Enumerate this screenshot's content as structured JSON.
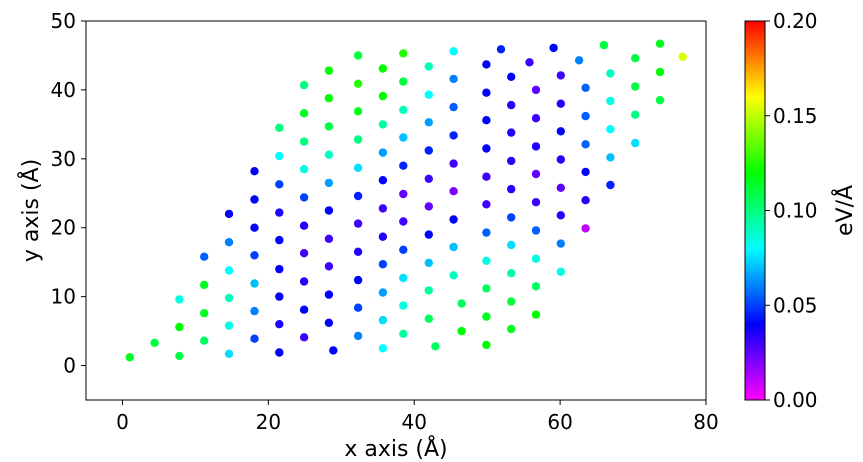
{
  "chart_data": {
    "type": "scatter",
    "xlabel": "x axis (Å)",
    "ylabel": "y axis (Å)",
    "xlim": [
      -5,
      80
    ],
    "ylim": [
      -5,
      50
    ],
    "xticks": [
      "0",
      "20",
      "40",
      "60",
      "80"
    ],
    "yticks": [
      "0",
      "10",
      "20",
      "30",
      "40",
      "50"
    ],
    "colorbar": {
      "label": "eV/Å",
      "range": [
        0.0,
        0.2
      ],
      "ticks": [
        "0.00",
        "0.05",
        "0.10",
        "0.15",
        "0.20"
      ],
      "colormap": "gist_rainbow_r"
    },
    "points": [
      [
        1,
        1.2,
        0.115
      ],
      [
        4.4,
        3.3,
        0.11
      ],
      [
        7.8,
        1.4,
        0.11
      ],
      [
        7.8,
        5.6,
        0.12
      ],
      [
        7.8,
        9.6,
        0.085
      ],
      [
        11.2,
        3.6,
        0.105
      ],
      [
        11.2,
        7.6,
        0.115
      ],
      [
        11.2,
        11.7,
        0.115
      ],
      [
        11.2,
        15.8,
        0.055
      ],
      [
        14.6,
        1.7,
        0.075
      ],
      [
        14.6,
        5.8,
        0.085
      ],
      [
        14.6,
        9.8,
        0.09
      ],
      [
        14.6,
        13.8,
        0.08
      ],
      [
        14.6,
        17.9,
        0.06
      ],
      [
        14.6,
        22,
        0.04
      ],
      [
        18.1,
        3.9,
        0.05
      ],
      [
        18.1,
        7.9,
        0.06
      ],
      [
        18.1,
        11.9,
        0.07
      ],
      [
        18.1,
        16,
        0.05
      ],
      [
        18.1,
        20,
        0.04
      ],
      [
        18.1,
        24.1,
        0.04
      ],
      [
        18.1,
        28.2,
        0.04
      ],
      [
        21.5,
        1.9,
        0.04
      ],
      [
        21.5,
        6,
        0.035
      ],
      [
        21.5,
        10,
        0.04
      ],
      [
        21.5,
        14,
        0.04
      ],
      [
        21.5,
        18.2,
        0.04
      ],
      [
        21.5,
        22.2,
        0.035
      ],
      [
        21.5,
        26.3,
        0.05
      ],
      [
        21.5,
        30.4,
        0.08
      ],
      [
        21.5,
        34.5,
        0.1
      ],
      [
        24.9,
        4.1,
        0.03
      ],
      [
        24.9,
        8.1,
        0.04
      ],
      [
        24.9,
        12.2,
        0.035
      ],
      [
        24.9,
        16.3,
        0.03
      ],
      [
        24.9,
        20.3,
        0.035
      ],
      [
        24.9,
        24.4,
        0.05
      ],
      [
        24.9,
        28.5,
        0.085
      ],
      [
        24.9,
        32.5,
        0.1
      ],
      [
        24.9,
        36.6,
        0.115
      ],
      [
        24.9,
        40.7,
        0.1
      ],
      [
        28.3,
        6.2,
        0.04
      ],
      [
        28.3,
        10.3,
        0.04
      ],
      [
        28.3,
        14.4,
        0.03
      ],
      [
        28.3,
        18.4,
        0.03
      ],
      [
        28.3,
        22.5,
        0.04
      ],
      [
        28.3,
        26.5,
        0.065
      ],
      [
        28.3,
        30.6,
        0.09
      ],
      [
        28.3,
        34.7,
        0.11
      ],
      [
        28.3,
        38.8,
        0.12
      ],
      [
        28.3,
        42.8,
        0.12
      ],
      [
        28.9,
        2.2,
        0.04
      ],
      [
        32.3,
        4.3,
        0.06
      ],
      [
        32.3,
        8.4,
        0.05
      ],
      [
        32.3,
        12.4,
        0.04
      ],
      [
        32.3,
        16.5,
        0.035
      ],
      [
        32.3,
        20.6,
        0.03
      ],
      [
        32.3,
        24.6,
        0.045
      ],
      [
        32.3,
        28.7,
        0.075
      ],
      [
        32.3,
        32.8,
        0.1
      ],
      [
        32.3,
        36.9,
        0.115
      ],
      [
        32.3,
        40.9,
        0.125
      ],
      [
        32.3,
        45,
        0.11
      ],
      [
        35.7,
        2.5,
        0.08
      ],
      [
        35.7,
        6.6,
        0.075
      ],
      [
        35.7,
        10.6,
        0.065
      ],
      [
        35.7,
        14.7,
        0.05
      ],
      [
        35.7,
        18.7,
        0.035
      ],
      [
        35.7,
        22.8,
        0.03
      ],
      [
        35.7,
        26.9,
        0.04
      ],
      [
        35.7,
        30.9,
        0.065
      ],
      [
        35.7,
        35,
        0.095
      ],
      [
        35.7,
        39.1,
        0.12
      ],
      [
        35.7,
        43.1,
        0.12
      ],
      [
        38.5,
        4.6,
        0.095
      ],
      [
        38.5,
        8.7,
        0.085
      ],
      [
        38.5,
        12.7,
        0.075
      ],
      [
        38.5,
        16.8,
        0.05
      ],
      [
        38.5,
        20.9,
        0.03
      ],
      [
        38.5,
        24.9,
        0.025
      ],
      [
        38.5,
        29,
        0.045
      ],
      [
        38.5,
        33.1,
        0.07
      ],
      [
        38.5,
        37.1,
        0.09
      ],
      [
        38.5,
        41.2,
        0.11
      ],
      [
        38.5,
        45.3,
        0.125
      ],
      [
        42.9,
        2.8,
        0.105
      ],
      [
        42,
        6.8,
        0.105
      ],
      [
        42,
        10.9,
        0.095
      ],
      [
        42,
        14.9,
        0.07
      ],
      [
        42,
        19,
        0.04
      ],
      [
        42,
        23.1,
        0.025
      ],
      [
        42,
        27.1,
        0.03
      ],
      [
        42,
        31.2,
        0.045
      ],
      [
        42,
        35.3,
        0.065
      ],
      [
        42,
        39.3,
        0.08
      ],
      [
        42,
        43.4,
        0.09
      ],
      [
        46.5,
        5,
        0.12
      ],
      [
        46.5,
        9,
        0.105
      ],
      [
        45.4,
        13.1,
        0.09
      ],
      [
        45.4,
        17.2,
        0.07
      ],
      [
        45.4,
        21.2,
        0.04
      ],
      [
        45.4,
        25.3,
        0.02
      ],
      [
        45.4,
        29.3,
        0.03
      ],
      [
        45.4,
        33.4,
        0.045
      ],
      [
        45.4,
        37.5,
        0.055
      ],
      [
        45.4,
        41.6,
        0.06
      ],
      [
        45.4,
        45.6,
        0.08
      ],
      [
        49.9,
        3,
        0.12
      ],
      [
        49.9,
        7.1,
        0.115
      ],
      [
        49.9,
        11.2,
        0.105
      ],
      [
        49.9,
        15.2,
        0.085
      ],
      [
        49.9,
        19.3,
        0.055
      ],
      [
        49.9,
        23.4,
        0.03
      ],
      [
        49.9,
        27.4,
        0.03
      ],
      [
        49.9,
        31.5,
        0.04
      ],
      [
        49.9,
        35.6,
        0.04
      ],
      [
        49.9,
        39.6,
        0.04
      ],
      [
        49.9,
        43.7,
        0.04
      ],
      [
        53.3,
        5.3,
        0.115
      ],
      [
        53.3,
        9.3,
        0.11
      ],
      [
        53.3,
        13.4,
        0.095
      ],
      [
        53.3,
        17.5,
        0.075
      ],
      [
        53.3,
        21.5,
        0.05
      ],
      [
        53.3,
        25.6,
        0.035
      ],
      [
        53.3,
        29.7,
        0.035
      ],
      [
        53.3,
        33.8,
        0.035
      ],
      [
        53.3,
        37.8,
        0.035
      ],
      [
        53.3,
        41.9,
        0.04
      ],
      [
        51.9,
        45.9,
        0.045
      ],
      [
        56.7,
        7.4,
        0.12
      ],
      [
        56.7,
        11.5,
        0.105
      ],
      [
        56.7,
        15.5,
        0.085
      ],
      [
        56.7,
        19.6,
        0.055
      ],
      [
        56.7,
        23.7,
        0.03
      ],
      [
        56.7,
        27.8,
        0.025
      ],
      [
        56.7,
        31.8,
        0.035
      ],
      [
        56.7,
        35.9,
        0.03
      ],
      [
        56.7,
        40,
        0.025
      ],
      [
        55.8,
        44,
        0.03
      ],
      [
        60.1,
        13.6,
        0.085
      ],
      [
        60.1,
        17.7,
        0.06
      ],
      [
        60.1,
        21.8,
        0.035
      ],
      [
        60.1,
        25.8,
        0.025
      ],
      [
        60.1,
        29.9,
        0.035
      ],
      [
        60.1,
        34,
        0.04
      ],
      [
        60.1,
        38,
        0.035
      ],
      [
        60.1,
        42.1,
        0.03
      ],
      [
        59.1,
        46.1,
        0.04
      ],
      [
        63.5,
        19.9,
        0.01
      ],
      [
        63.5,
        24,
        0.035
      ],
      [
        63.5,
        28.1,
        0.04
      ],
      [
        63.5,
        32.1,
        0.055
      ],
      [
        63.5,
        36.2,
        0.055
      ],
      [
        63.5,
        40.3,
        0.055
      ],
      [
        62.6,
        44.3,
        0.06
      ],
      [
        66.9,
        26.2,
        0.045
      ],
      [
        66.9,
        30.2,
        0.07
      ],
      [
        66.9,
        34.3,
        0.08
      ],
      [
        66.9,
        38.4,
        0.085
      ],
      [
        66.9,
        42.4,
        0.09
      ],
      [
        66,
        46.5,
        0.11
      ],
      [
        70.3,
        32.3,
        0.075
      ],
      [
        70.3,
        36.4,
        0.1
      ],
      [
        70.3,
        40.5,
        0.11
      ],
      [
        70.3,
        44.6,
        0.11
      ],
      [
        73.7,
        38.5,
        0.11
      ],
      [
        73.7,
        42.6,
        0.12
      ],
      [
        73.7,
        46.7,
        0.115
      ],
      [
        76.8,
        44.8,
        0.155
      ]
    ]
  }
}
